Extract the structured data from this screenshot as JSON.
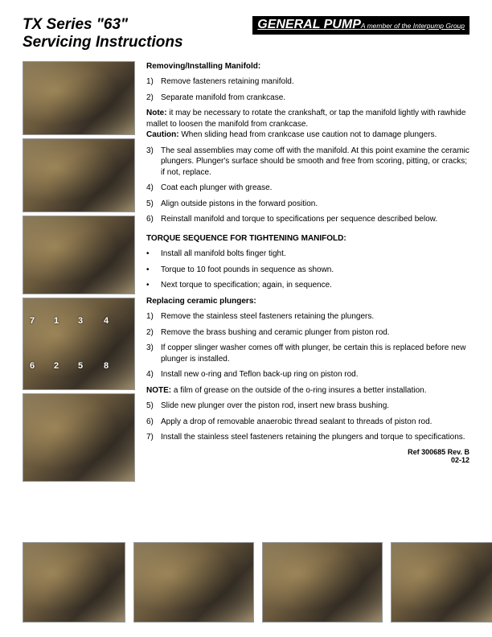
{
  "header": {
    "title_line1": "TX Series \"63\"",
    "title_line2": "Servicing Instructions",
    "logo_main": "GENERAL PUMP",
    "logo_sub": "A member of the Interpump Group"
  },
  "sections": {
    "manifold_head": "Removing/Installing Manifold:",
    "manifold_steps_a": [
      "Remove fasteners retaining manifold.",
      "Separate manifold from crankcase."
    ],
    "note1_label": "Note:",
    "note1_text": " it may be necessary to rotate the crankshaft, or tap the manifold lightly with rawhide mallet to loosen the manifold from crankcase.",
    "caution_label": "Caution:",
    "caution_text": " When sliding head from crankcase use caution not to damage plungers.",
    "manifold_steps_b": [
      "The seal assemblies may come off with the manifold. At this point examine the ceramic plungers. Plunger's surface should be smooth and free from scoring, pitting, or cracks; if not, replace.",
      "Coat each plunger with grease.",
      "Align outside pistons in the forward position.",
      "Reinstall manifold and torque to specifications per sequence described below."
    ],
    "torque_head": "TORQUE SEQUENCE FOR TIGHTENING MANIFOLD:",
    "torque_bullets": [
      "Install all manifold bolts finger tight.",
      "Torque to 10 foot pounds in sequence as shown.",
      "Next torque to specification; again, in sequence."
    ],
    "plunger_head": "Replacing ceramic plungers:",
    "plunger_steps_a": [
      "Remove the stainless steel fasteners retaining the plungers.",
      "Remove the brass bushing and ceramic plunger from piston rod.",
      "If copper slinger washer comes off with plunger, be certain this is replaced before new plunger is installed.",
      "Install new o-ring and Teflon back-up ring on piston rod."
    ],
    "note2_label": "NOTE:",
    "note2_text": " a film of grease on the outside of the o-ring insures a better installation.",
    "plunger_steps_b": [
      "Slide new plunger over the piston rod, insert new brass bushing.",
      "Apply a drop of removable anaerobic thread sealant to threads of piston rod.",
      "Install the stainless steel fasteners retaining the plungers and torque to specifications."
    ],
    "ref_line1": "Ref 300685 Rev. B",
    "ref_line2": "02-12"
  },
  "torque_numbers": [
    "7",
    "1",
    "3",
    "4",
    "2",
    "6",
    "5",
    "8"
  ],
  "images": {
    "left_heights": [
      92,
      92,
      98,
      115,
      110
    ],
    "bottom_widths": [
      128,
      150,
      150,
      128
    ]
  },
  "colors": {
    "logo_bg": "#000000",
    "text": "#000000",
    "page_bg": "#ffffff"
  }
}
